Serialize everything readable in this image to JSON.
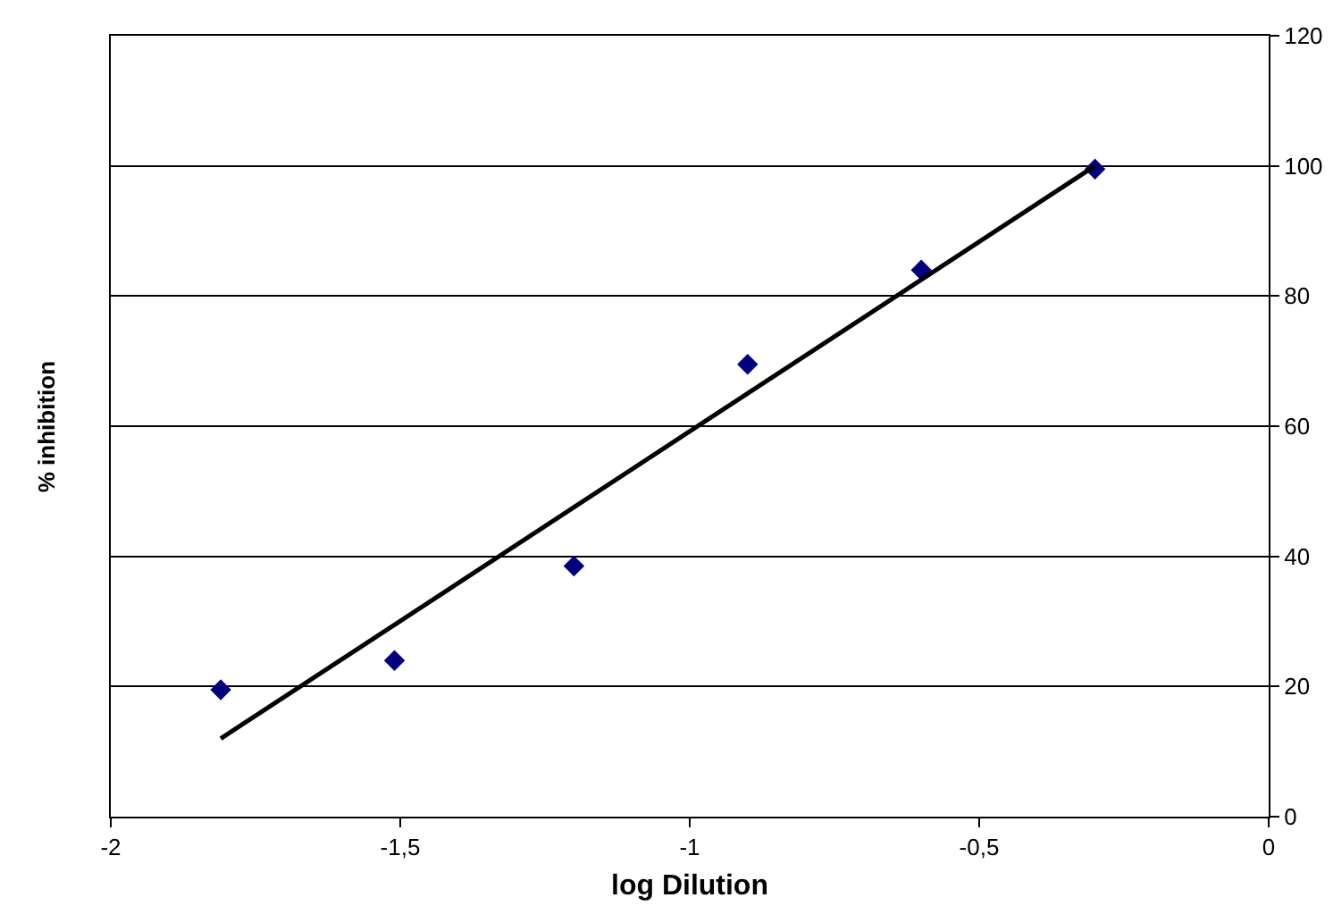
{
  "chart_data": {
    "type": "scatter",
    "xlabel": "log Dilution",
    "ylabel": "% inhibition",
    "xlim": [
      -2,
      0
    ],
    "ylim": [
      0,
      120
    ],
    "xticks": [
      {
        "value": -2,
        "label": "-2"
      },
      {
        "value": -1.5,
        "label": "-1,5"
      },
      {
        "value": -1,
        "label": "-1"
      },
      {
        "value": -0.5,
        "label": "-0,5"
      },
      {
        "value": 0,
        "label": "0"
      }
    ],
    "yticks": [
      0,
      20,
      40,
      60,
      80,
      100,
      120
    ],
    "grid": "y",
    "series": [
      {
        "color": "#000080",
        "marker": "diamond",
        "x": [
          -1.81,
          -1.51,
          -1.2,
          -0.9,
          -0.6,
          -0.3
        ],
        "values": [
          19.5,
          24,
          38.5,
          69.5,
          84,
          99.5
        ]
      },
      {
        "type": "line",
        "color": "#000000",
        "marker": "none",
        "line_style": "solid",
        "x": [
          -1.81,
          -0.3
        ],
        "values": [
          12,
          100
        ]
      }
    ]
  }
}
